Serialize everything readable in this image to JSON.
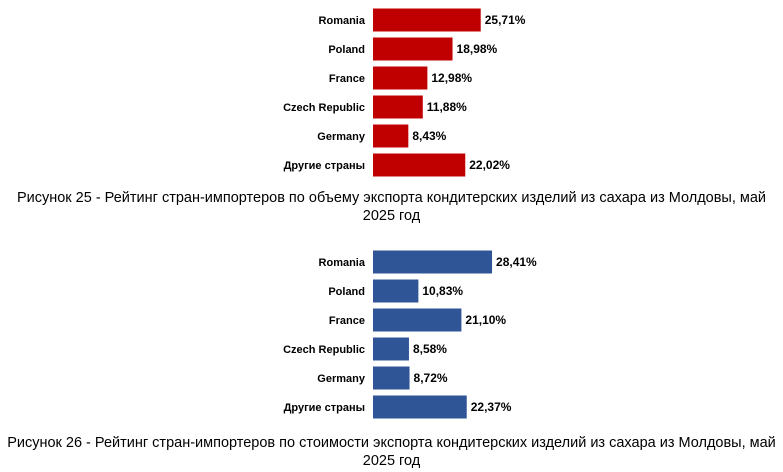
{
  "chart_data": [
    {
      "type": "bar",
      "orientation": "horizontal",
      "categories": [
        "Romania",
        "Poland",
        "France",
        "Czech Republic",
        "Germany",
        "Другие страны"
      ],
      "values": [
        25.71,
        18.98,
        12.98,
        11.88,
        8.43,
        22.02
      ],
      "value_labels": [
        "25,71%",
        "18,98%",
        "12,98%",
        "11,88%",
        "8,43%",
        "22,02%"
      ],
      "color": "#c00000",
      "xlim": [
        0,
        30
      ],
      "grid": false,
      "caption": "Рисунок 25 - Рейтинг стран-импортеров по объему экспорта кондитерских изделий из сахара из Молдовы, май 2025 год"
    },
    {
      "type": "bar",
      "orientation": "horizontal",
      "categories": [
        "Romania",
        "Poland",
        "France",
        "Czech Republic",
        "Germany",
        "Другие страны"
      ],
      "values": [
        28.41,
        10.83,
        21.1,
        8.58,
        8.72,
        22.37
      ],
      "value_labels": [
        "28,41%",
        "10,83%",
        "21,10%",
        "8,58%",
        "8,72%",
        "22,37%"
      ],
      "color": "#2f5597",
      "xlim": [
        0,
        30
      ],
      "grid": false,
      "caption": "Рисунок 26 - Рейтинг стран-импортеров по стоимости экспорта кондитерских изделий из сахара из Молдовы, май 2025 год"
    }
  ]
}
